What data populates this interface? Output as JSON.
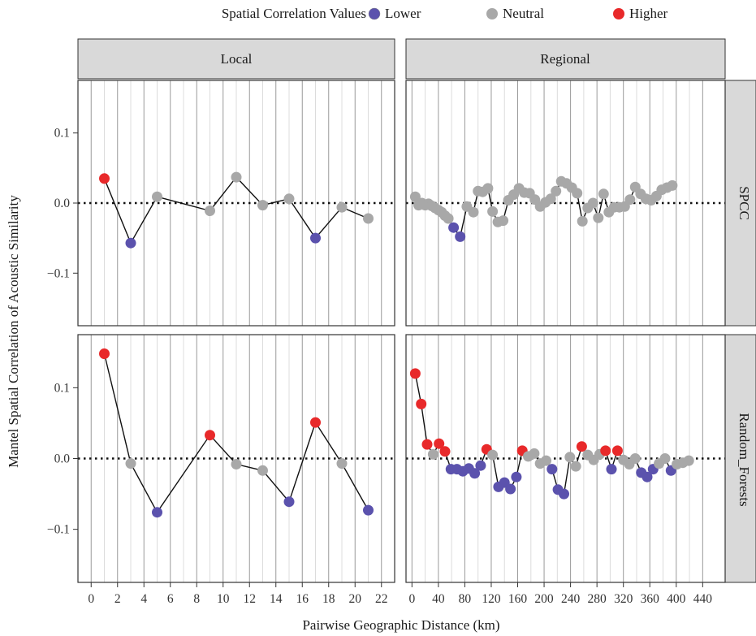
{
  "chart_data": {
    "type": "line",
    "xlabel": "Pairwise Geographic Distance (km)",
    "ylabel": "Mantel Spatial Correlation of Acoustic Similarity",
    "ylim": [
      -0.175,
      0.175
    ],
    "yticks": [
      -0.1,
      0.0,
      0.1
    ],
    "ytick_labels": [
      "−0.1",
      "0.0",
      "0.1"
    ],
    "reference_line": {
      "y": 0,
      "style": "dotted"
    },
    "legend": {
      "title": "Spatial Correlation Values",
      "position": "top",
      "entries": [
        {
          "label": "Lower",
          "color": "#5b52ad"
        },
        {
          "label": "Neutral",
          "color": "#a8a8a8"
        },
        {
          "label": "Higher",
          "color": "#e8292a"
        }
      ]
    },
    "columns": [
      {
        "strip": "Local",
        "xlim": [
          -1,
          23
        ],
        "xticks": [
          0,
          2,
          4,
          6,
          8,
          10,
          12,
          14,
          16,
          18,
          20,
          22
        ],
        "xtick_labels": [
          "0",
          "2",
          "4",
          "6",
          "8",
          "10",
          "12",
          "14",
          "16",
          "18",
          "20",
          "22"
        ]
      },
      {
        "strip": "Regional",
        "xlim": [
          -9,
          474
        ],
        "xticks": [
          0,
          40,
          80,
          120,
          160,
          200,
          240,
          280,
          320,
          360,
          400,
          440
        ],
        "xtick_labels": [
          "0",
          "40",
          "80",
          "120",
          "160",
          "200",
          "240",
          "280",
          "320",
          "360",
          "400",
          "440"
        ]
      }
    ],
    "rows": [
      {
        "strip": "SPCC"
      },
      {
        "strip": "Random_Forests"
      }
    ],
    "panels": [
      {
        "row": "SPCC",
        "column": "Local",
        "points": [
          {
            "x": 1,
            "y": 0.035,
            "class": "Higher"
          },
          {
            "x": 3,
            "y": -0.057,
            "class": "Lower"
          },
          {
            "x": 5,
            "y": 0.009,
            "class": "Neutral"
          },
          {
            "x": 9,
            "y": -0.011,
            "class": "Neutral"
          },
          {
            "x": 11,
            "y": 0.037,
            "class": "Neutral"
          },
          {
            "x": 13,
            "y": -0.003,
            "class": "Neutral"
          },
          {
            "x": 15,
            "y": 0.006,
            "class": "Neutral"
          },
          {
            "x": 17,
            "y": -0.05,
            "class": "Lower"
          },
          {
            "x": 19,
            "y": -0.006,
            "class": "Neutral"
          },
          {
            "x": 21,
            "y": -0.022,
            "class": "Neutral"
          }
        ]
      },
      {
        "row": "SPCC",
        "column": "Regional",
        "points": [
          {
            "x": 5,
            "y": 0.009,
            "class": "Neutral"
          },
          {
            "x": 10,
            "y": -0.003,
            "class": "Neutral"
          },
          {
            "x": 15,
            "y": 0.0,
            "class": "Neutral"
          },
          {
            "x": 20,
            "y": -0.003,
            "class": "Neutral"
          },
          {
            "x": 25,
            "y": -0.001,
            "class": "Neutral"
          },
          {
            "x": 30,
            "y": -0.004,
            "class": "Neutral"
          },
          {
            "x": 35,
            "y": -0.007,
            "class": "Neutral"
          },
          {
            "x": 40,
            "y": -0.01,
            "class": "Neutral"
          },
          {
            "x": 45,
            "y": -0.013,
            "class": "Neutral"
          },
          {
            "x": 50,
            "y": -0.018,
            "class": "Neutral"
          },
          {
            "x": 55,
            "y": -0.022,
            "class": "Neutral"
          },
          {
            "x": 63,
            "y": -0.035,
            "class": "Lower"
          },
          {
            "x": 73,
            "y": -0.048,
            "class": "Lower"
          },
          {
            "x": 83,
            "y": -0.005,
            "class": "Neutral"
          },
          {
            "x": 93,
            "y": -0.013,
            "class": "Neutral"
          },
          {
            "x": 100,
            "y": 0.017,
            "class": "Neutral"
          },
          {
            "x": 107,
            "y": 0.016,
            "class": "Neutral"
          },
          {
            "x": 115,
            "y": 0.021,
            "class": "Neutral"
          },
          {
            "x": 122,
            "y": -0.012,
            "class": "Neutral"
          },
          {
            "x": 130,
            "y": -0.027,
            "class": "Neutral"
          },
          {
            "x": 138,
            "y": -0.025,
            "class": "Neutral"
          },
          {
            "x": 146,
            "y": 0.004,
            "class": "Neutral"
          },
          {
            "x": 154,
            "y": 0.012,
            "class": "Neutral"
          },
          {
            "x": 162,
            "y": 0.021,
            "class": "Neutral"
          },
          {
            "x": 170,
            "y": 0.015,
            "class": "Neutral"
          },
          {
            "x": 178,
            "y": 0.014,
            "class": "Neutral"
          },
          {
            "x": 186,
            "y": 0.005,
            "class": "Neutral"
          },
          {
            "x": 194,
            "y": -0.005,
            "class": "Neutral"
          },
          {
            "x": 202,
            "y": 0.001,
            "class": "Neutral"
          },
          {
            "x": 210,
            "y": 0.006,
            "class": "Neutral"
          },
          {
            "x": 218,
            "y": 0.017,
            "class": "Neutral"
          },
          {
            "x": 226,
            "y": 0.031,
            "class": "Neutral"
          },
          {
            "x": 234,
            "y": 0.028,
            "class": "Neutral"
          },
          {
            "x": 242,
            "y": 0.022,
            "class": "Neutral"
          },
          {
            "x": 250,
            "y": 0.014,
            "class": "Neutral"
          },
          {
            "x": 258,
            "y": -0.026,
            "class": "Neutral"
          },
          {
            "x": 266,
            "y": -0.007,
            "class": "Neutral"
          },
          {
            "x": 274,
            "y": 0.0,
            "class": "Neutral"
          },
          {
            "x": 282,
            "y": -0.021,
            "class": "Neutral"
          },
          {
            "x": 290,
            "y": 0.013,
            "class": "Neutral"
          },
          {
            "x": 298,
            "y": -0.013,
            "class": "Neutral"
          },
          {
            "x": 306,
            "y": -0.006,
            "class": "Neutral"
          },
          {
            "x": 314,
            "y": -0.006,
            "class": "Neutral"
          },
          {
            "x": 322,
            "y": -0.005,
            "class": "Neutral"
          },
          {
            "x": 330,
            "y": 0.005,
            "class": "Neutral"
          },
          {
            "x": 338,
            "y": 0.023,
            "class": "Neutral"
          },
          {
            "x": 346,
            "y": 0.013,
            "class": "Neutral"
          },
          {
            "x": 354,
            "y": 0.006,
            "class": "Neutral"
          },
          {
            "x": 362,
            "y": 0.004,
            "class": "Neutral"
          },
          {
            "x": 370,
            "y": 0.01,
            "class": "Neutral"
          },
          {
            "x": 378,
            "y": 0.019,
            "class": "Neutral"
          },
          {
            "x": 386,
            "y": 0.022,
            "class": "Neutral"
          },
          {
            "x": 394,
            "y": 0.025,
            "class": "Neutral"
          }
        ]
      },
      {
        "row": "Random_Forests",
        "column": "Local",
        "points": [
          {
            "x": 1,
            "y": 0.148,
            "class": "Higher"
          },
          {
            "x": 3,
            "y": -0.007,
            "class": "Neutral"
          },
          {
            "x": 5,
            "y": -0.076,
            "class": "Lower"
          },
          {
            "x": 9,
            "y": 0.033,
            "class": "Higher"
          },
          {
            "x": 11,
            "y": -0.008,
            "class": "Neutral"
          },
          {
            "x": 13,
            "y": -0.017,
            "class": "Neutral"
          },
          {
            "x": 15,
            "y": -0.061,
            "class": "Lower"
          },
          {
            "x": 17,
            "y": 0.051,
            "class": "Higher"
          },
          {
            "x": 19,
            "y": -0.007,
            "class": "Neutral"
          },
          {
            "x": 21,
            "y": -0.073,
            "class": "Lower"
          }
        ]
      },
      {
        "row": "Random_Forests",
        "column": "Regional",
        "points": [
          {
            "x": 5,
            "y": 0.12,
            "class": "Higher"
          },
          {
            "x": 14,
            "y": 0.077,
            "class": "Higher"
          },
          {
            "x": 23,
            "y": 0.02,
            "class": "Higher"
          },
          {
            "x": 32,
            "y": 0.006,
            "class": "Neutral"
          },
          {
            "x": 41,
            "y": 0.021,
            "class": "Higher"
          },
          {
            "x": 50,
            "y": 0.01,
            "class": "Higher"
          },
          {
            "x": 59,
            "y": -0.015,
            "class": "Lower"
          },
          {
            "x": 68,
            "y": -0.015,
            "class": "Lower"
          },
          {
            "x": 77,
            "y": -0.018,
            "class": "Lower"
          },
          {
            "x": 86,
            "y": -0.014,
            "class": "Lower"
          },
          {
            "x": 95,
            "y": -0.021,
            "class": "Lower"
          },
          {
            "x": 104,
            "y": -0.01,
            "class": "Lower"
          },
          {
            "x": 113,
            "y": 0.013,
            "class": "Higher"
          },
          {
            "x": 122,
            "y": 0.005,
            "class": "Neutral"
          },
          {
            "x": 131,
            "y": -0.04,
            "class": "Lower"
          },
          {
            "x": 140,
            "y": -0.034,
            "class": "Lower"
          },
          {
            "x": 149,
            "y": -0.043,
            "class": "Lower"
          },
          {
            "x": 158,
            "y": -0.026,
            "class": "Lower"
          },
          {
            "x": 167,
            "y": 0.011,
            "class": "Higher"
          },
          {
            "x": 176,
            "y": 0.003,
            "class": "Neutral"
          },
          {
            "x": 185,
            "y": 0.007,
            "class": "Neutral"
          },
          {
            "x": 194,
            "y": -0.007,
            "class": "Neutral"
          },
          {
            "x": 203,
            "y": -0.003,
            "class": "Neutral"
          },
          {
            "x": 212,
            "y": -0.015,
            "class": "Lower"
          },
          {
            "x": 221,
            "y": -0.044,
            "class": "Lower"
          },
          {
            "x": 230,
            "y": -0.05,
            "class": "Lower"
          },
          {
            "x": 239,
            "y": 0.002,
            "class": "Neutral"
          },
          {
            "x": 248,
            "y": -0.011,
            "class": "Neutral"
          },
          {
            "x": 257,
            "y": 0.017,
            "class": "Higher"
          },
          {
            "x": 266,
            "y": 0.005,
            "class": "Neutral"
          },
          {
            "x": 275,
            "y": -0.002,
            "class": "Neutral"
          },
          {
            "x": 284,
            "y": 0.006,
            "class": "Neutral"
          },
          {
            "x": 293,
            "y": 0.011,
            "class": "Higher"
          },
          {
            "x": 302,
            "y": -0.015,
            "class": "Lower"
          },
          {
            "x": 311,
            "y": 0.011,
            "class": "Higher"
          },
          {
            "x": 320,
            "y": -0.002,
            "class": "Neutral"
          },
          {
            "x": 329,
            "y": -0.008,
            "class": "Neutral"
          },
          {
            "x": 338,
            "y": 0.0,
            "class": "Neutral"
          },
          {
            "x": 347,
            "y": -0.02,
            "class": "Lower"
          },
          {
            "x": 356,
            "y": -0.026,
            "class": "Lower"
          },
          {
            "x": 365,
            "y": -0.015,
            "class": "Lower"
          },
          {
            "x": 374,
            "y": -0.007,
            "class": "Neutral"
          },
          {
            "x": 383,
            "y": 0.0,
            "class": "Neutral"
          },
          {
            "x": 392,
            "y": -0.017,
            "class": "Lower"
          },
          {
            "x": 401,
            "y": -0.008,
            "class": "Neutral"
          },
          {
            "x": 410,
            "y": -0.006,
            "class": "Neutral"
          },
          {
            "x": 419,
            "y": -0.003,
            "class": "Neutral"
          }
        ]
      }
    ]
  }
}
